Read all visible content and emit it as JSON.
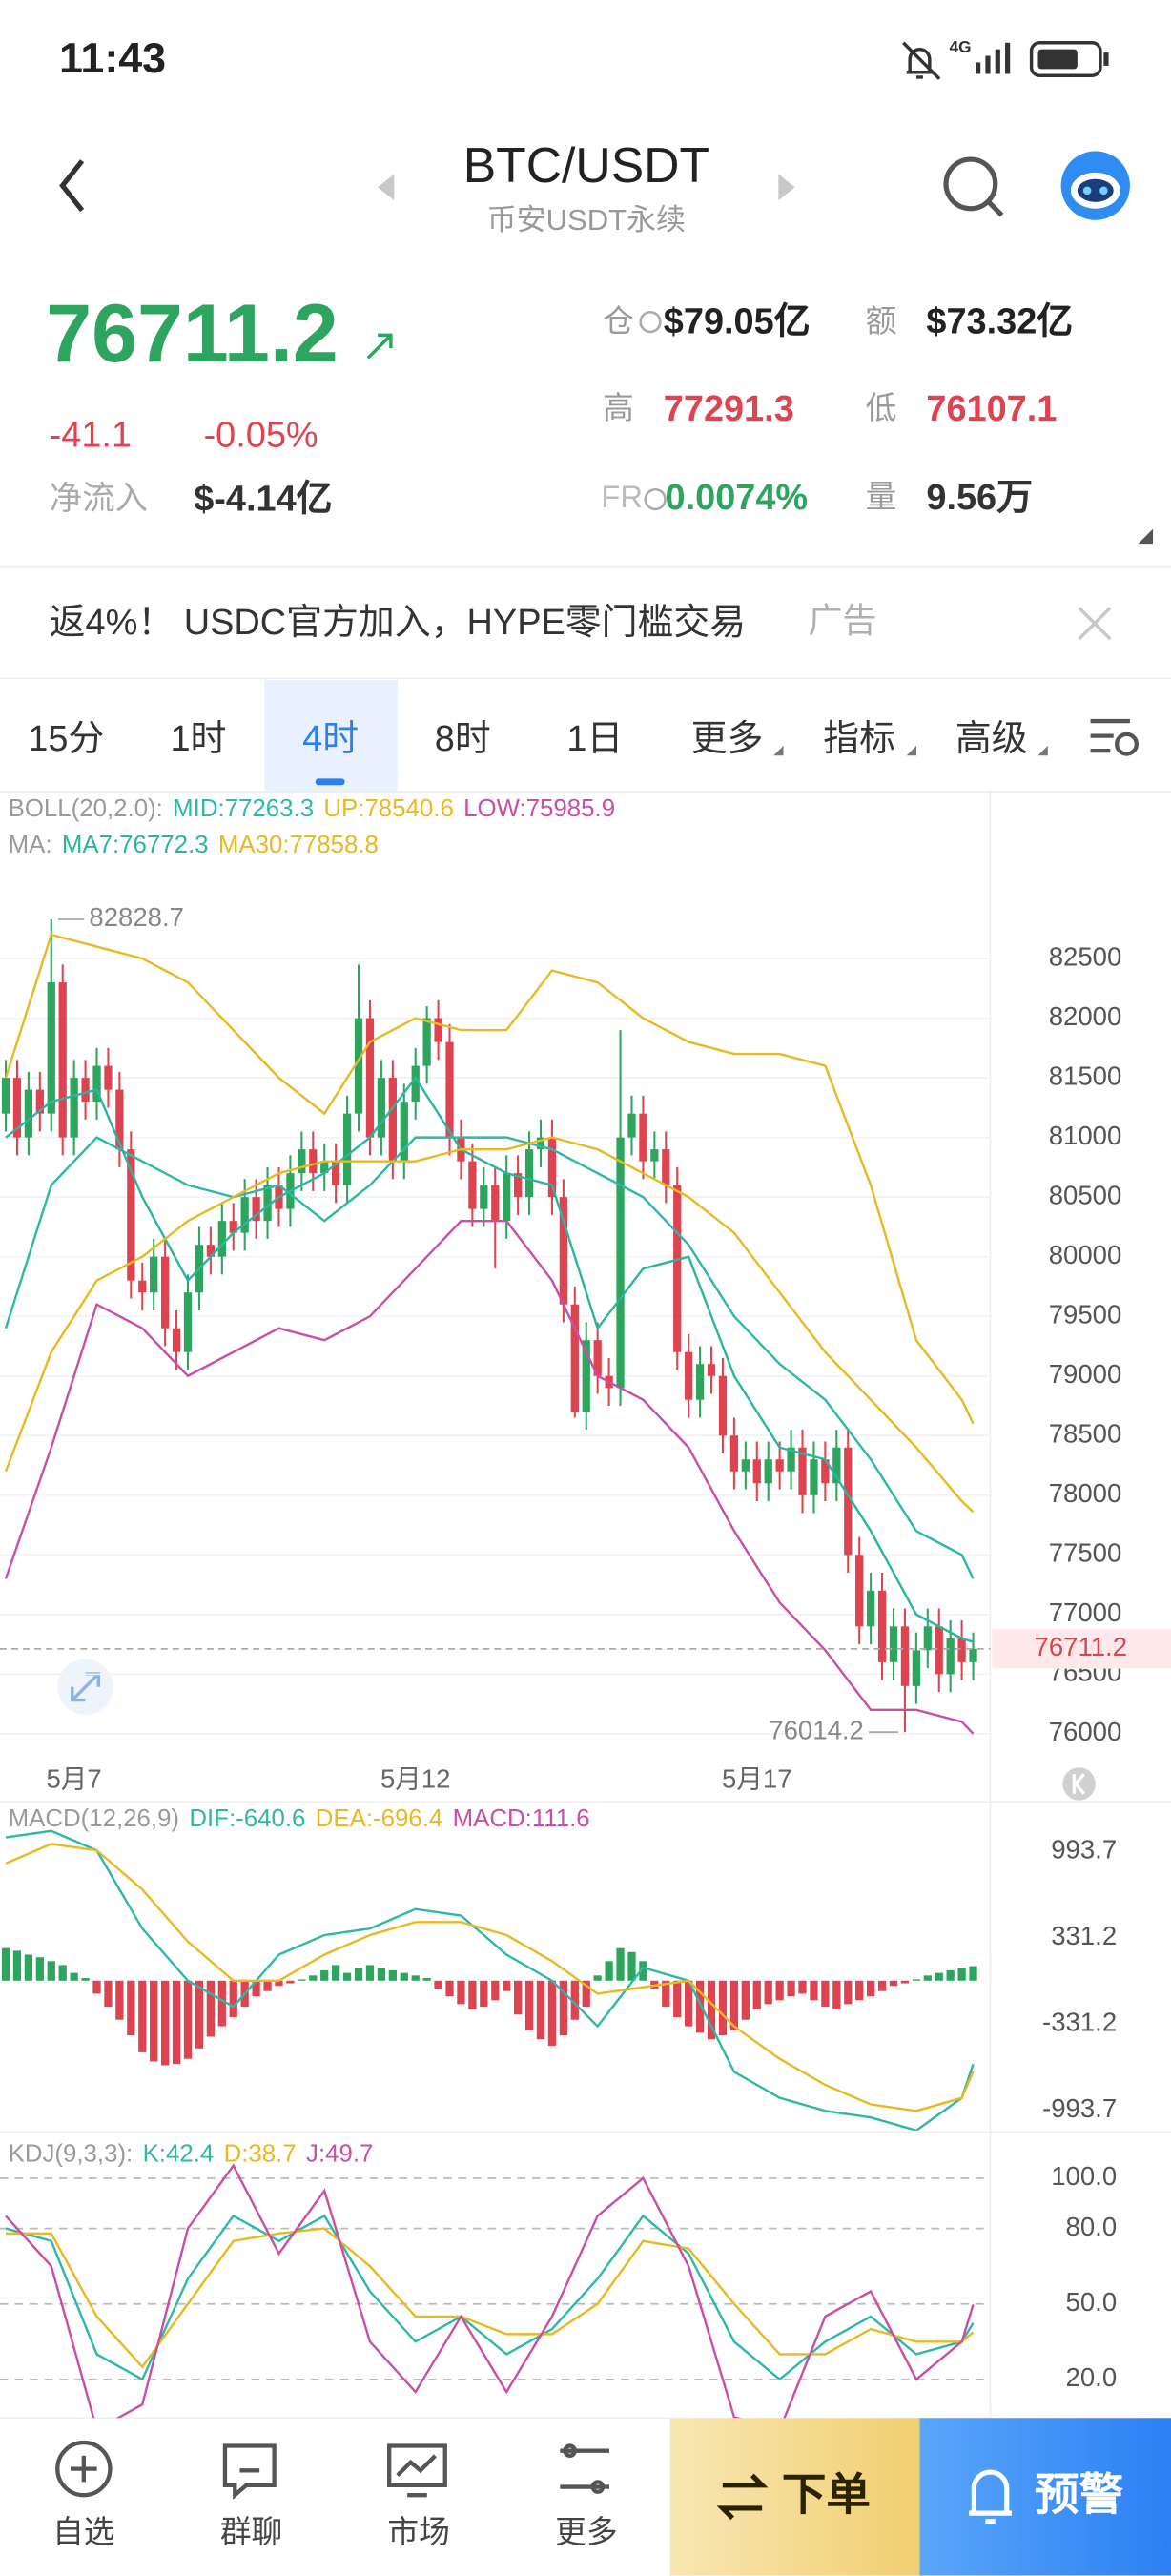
{
  "status_bar": {
    "time": "11:43",
    "network": "4G"
  },
  "header": {
    "title": "BTC/USDT",
    "subtitle": "币安USDT永续"
  },
  "ticker": {
    "price": "76711.2",
    "change": "-41.1",
    "change_pct": "-0.05%",
    "net_inflow_label": "净流入",
    "net_inflow": "$-4.14亿",
    "stats": [
      {
        "label": "仓",
        "value": "$79.05亿"
      },
      {
        "label": "额",
        "value": "$73.32亿"
      },
      {
        "label": "高",
        "value": "77291.3"
      },
      {
        "label": "低",
        "value": "76107.1"
      },
      {
        "label": "FR",
        "value": "0.0074%"
      },
      {
        "label": "量",
        "value": "9.56万"
      }
    ]
  },
  "ad": {
    "text": "返4%！ USDC官方加入，HYPE零门槛交易",
    "tag": "广告"
  },
  "tabs": {
    "items": [
      "15分",
      "1时",
      "4时",
      "8时",
      "1日",
      "更多",
      "指标",
      "高级"
    ],
    "selected": 2
  },
  "chart_data": [
    {
      "type": "candlestick",
      "ylim": [
        75800,
        83100
      ],
      "yticks": [
        76000,
        76500,
        77000,
        77500,
        78000,
        78500,
        79000,
        79500,
        80000,
        80500,
        81000,
        81500,
        82000,
        82500
      ],
      "grid": true,
      "candle_colors": {
        "up": "#2ea55e",
        "down": "#de4350"
      },
      "candles": [
        [
          81200,
          81650,
          81050,
          81500
        ],
        [
          81500,
          81650,
          80850,
          81000
        ],
        [
          81000,
          81550,
          80850,
          81400
        ],
        [
          81400,
          81550,
          81050,
          81200
        ],
        [
          81200,
          82828.7,
          81050,
          82300
        ],
        [
          82300,
          82450,
          80850,
          81000
        ],
        [
          81000,
          81650,
          80850,
          81500
        ],
        [
          81500,
          81650,
          81150,
          81300
        ],
        [
          81300,
          81750,
          81150,
          81600
        ],
        [
          81600,
          81750,
          81250,
          81400
        ],
        [
          81400,
          81550,
          80750,
          80900
        ],
        [
          80900,
          81050,
          79650,
          79800
        ],
        [
          79800,
          79950,
          79550,
          79700
        ],
        [
          79700,
          80150,
          79550,
          80000
        ],
        [
          80000,
          80150,
          79250,
          79400
        ],
        [
          79400,
          79550,
          79050,
          79200
        ],
        [
          79200,
          79850,
          79050,
          79700
        ],
        [
          79700,
          80250,
          79550,
          80100
        ],
        [
          80100,
          80250,
          79850,
          80000
        ],
        [
          80000,
          80450,
          79850,
          80300
        ],
        [
          80300,
          80450,
          80050,
          80200
        ],
        [
          80200,
          80650,
          80050,
          80500
        ],
        [
          80500,
          80650,
          80150,
          80300
        ],
        [
          80300,
          80750,
          80150,
          80600
        ],
        [
          80600,
          80750,
          80250,
          80400
        ],
        [
          80400,
          80850,
          80250,
          80700
        ],
        [
          80700,
          81050,
          80550,
          80900
        ],
        [
          80900,
          81050,
          80550,
          80700
        ],
        [
          80700,
          80950,
          80550,
          80800
        ],
        [
          80800,
          80950,
          80450,
          80600
        ],
        [
          80600,
          81350,
          80450,
          81200
        ],
        [
          81200,
          82450,
          81050,
          82000
        ],
        [
          82000,
          82150,
          80850,
          81000
        ],
        [
          81000,
          81650,
          80850,
          81500
        ],
        [
          81500,
          81650,
          80650,
          80800
        ],
        [
          80800,
          81450,
          80650,
          81300
        ],
        [
          81300,
          81750,
          81150,
          81600
        ],
        [
          81600,
          82100,
          81450,
          82000
        ],
        [
          82000,
          82150,
          81650,
          81800
        ],
        [
          81800,
          81950,
          80850,
          81000
        ],
        [
          81000,
          81150,
          80650,
          80800
        ],
        [
          80800,
          80950,
          80250,
          80400
        ],
        [
          80400,
          80750,
          80250,
          80600
        ],
        [
          80600,
          80750,
          79900,
          80300
        ],
        [
          80300,
          80850,
          80150,
          80700
        ],
        [
          80700,
          80850,
          80350,
          80500
        ],
        [
          80500,
          81050,
          80350,
          80900
        ],
        [
          80900,
          81150,
          80750,
          81000
        ],
        [
          81000,
          81150,
          80350,
          80500
        ],
        [
          80500,
          80650,
          79450,
          79600
        ],
        [
          79600,
          79750,
          78650,
          78700
        ],
        [
          78700,
          79450,
          78550,
          79300
        ],
        [
          79300,
          79450,
          78850,
          79000
        ],
        [
          79000,
          79150,
          78750,
          78900
        ],
        [
          78900,
          81900,
          78750,
          81000
        ],
        [
          81000,
          81350,
          80850,
          81200
        ],
        [
          81200,
          81350,
          80650,
          80800
        ],
        [
          80800,
          81050,
          80650,
          80900
        ],
        [
          80900,
          81050,
          80450,
          80600
        ],
        [
          80600,
          80750,
          79050,
          79200
        ],
        [
          79200,
          79350,
          78650,
          78800
        ],
        [
          78800,
          79250,
          78650,
          79100
        ],
        [
          79100,
          79250,
          78850,
          79000
        ],
        [
          79000,
          79150,
          78350,
          78500
        ],
        [
          78500,
          78650,
          78050,
          78200
        ],
        [
          78200,
          78450,
          78050,
          78300
        ],
        [
          78300,
          78450,
          77950,
          78100
        ],
        [
          78100,
          78450,
          77950,
          78300
        ],
        [
          78300,
          78450,
          78050,
          78200
        ],
        [
          78200,
          78550,
          78050,
          78400
        ],
        [
          78400,
          78550,
          77850,
          78000
        ],
        [
          78000,
          78450,
          77850,
          78300
        ],
        [
          78300,
          78450,
          77950,
          78100
        ],
        [
          78100,
          78550,
          77950,
          78400
        ],
        [
          78400,
          78550,
          77350,
          77500
        ],
        [
          77500,
          77650,
          76750,
          76900
        ],
        [
          76900,
          77350,
          76750,
          77200
        ],
        [
          77200,
          77350,
          76450,
          76600
        ],
        [
          76600,
          77050,
          76450,
          76900
        ],
        [
          76900,
          77050,
          76014.2,
          76400
        ],
        [
          76400,
          76850,
          76250,
          76700
        ],
        [
          76700,
          77050,
          76550,
          76900
        ],
        [
          76900,
          77050,
          76350,
          76500
        ],
        [
          76500,
          76950,
          76350,
          76800
        ],
        [
          76800,
          76950,
          76450,
          76600
        ],
        [
          76600,
          76850,
          76450,
          76711.2
        ]
      ],
      "x": [
        0,
        4,
        8,
        12,
        16,
        20,
        24,
        28,
        32,
        36,
        40,
        44,
        48,
        52,
        56,
        60,
        64,
        68,
        72,
        76,
        80,
        84,
        85
      ],
      "boll": {
        "label": "BOLL(20,2.0):",
        "series": [
          {
            "name": "MID:77263.3",
            "color": "#2fb8a8",
            "values": [
              79400,
              80600,
              81000,
              80800,
              80600,
              80500,
              80600,
              80300,
              80600,
              81000,
              81000,
              81000,
              80900,
              80700,
              80500,
              80100,
              79500,
              79100,
              78800,
              78300,
              77700,
              77500,
              77300
            ]
          },
          {
            "name": "UP:78540.6",
            "color": "#e8b923",
            "values": [
              81500,
              82700,
              82600,
              82500,
              82300,
              81900,
              81500,
              81200,
              81800,
              82000,
              81900,
              81900,
              82400,
              82300,
              82000,
              81800,
              81700,
              81700,
              81600,
              80600,
              79300,
              78800,
              78600
            ]
          },
          {
            "name": "LOW:75985.9",
            "color": "#c94fa5",
            "values": [
              77300,
              78400,
              79600,
              79400,
              79000,
              79200,
              79400,
              79300,
              79500,
              79900,
              80300,
              80300,
              79800,
              79000,
              78800,
              78400,
              77700,
              77100,
              76700,
              76200,
              76200,
              76100,
              76000
            ]
          }
        ]
      },
      "ma": {
        "label": "MA:",
        "series": [
          {
            "name": "MA7:76772.3",
            "color": "#2bb5a0",
            "values": [
              81000,
              81300,
              81400,
              80500,
              79800,
              80200,
              80500,
              80700,
              81000,
              81500,
              80900,
              80700,
              80600,
              79400,
              79900,
              80000,
              79000,
              78400,
              78300,
              77700,
              77000,
              76800,
              76770
            ]
          },
          {
            "name": "MA30:77858.8",
            "color": "#e8b923",
            "values": [
              78200,
              79200,
              79800,
              80000,
              80300,
              80500,
              80700,
              80800,
              80800,
              80800,
              80900,
              80900,
              81000,
              80900,
              80700,
              80500,
              80200,
              79700,
              79200,
              78800,
              78400,
              77950,
              77860
            ]
          }
        ]
      },
      "date_labels": [
        {
          "index": 6,
          "label": "5月7"
        },
        {
          "index": 36,
          "label": "5月12"
        },
        {
          "index": 66,
          "label": "5月17"
        }
      ],
      "high_label": {
        "index": 4,
        "value": 82828.7
      },
      "low_label": {
        "index": 79,
        "value": 76014.2
      },
      "last_price": 76711.2
    },
    {
      "type": "macd",
      "label": "MACD(12,26,9)",
      "ylim": [
        -1150,
        1360
      ],
      "yticks": [
        -993.7,
        -331.2,
        331.2,
        993.7
      ],
      "x": [
        0,
        4,
        8,
        12,
        16,
        20,
        24,
        28,
        32,
        36,
        40,
        44,
        48,
        52,
        56,
        60,
        64,
        68,
        72,
        76,
        80,
        84,
        85
      ],
      "series": [
        {
          "name": "DIF:-640.6",
          "color": "#2fb8a8",
          "values": [
            1100,
            1150,
            1000,
            400,
            0,
            -200,
            200,
            350,
            400,
            550,
            500,
            200,
            0,
            -350,
            100,
            0,
            -700,
            -900,
            -1000,
            -1050,
            -1150,
            -900,
            -640.6
          ]
        },
        {
          "name": "DEA:-696.4",
          "color": "#e8b923",
          "values": [
            900,
            1050,
            1000,
            700,
            300,
            0,
            0,
            200,
            350,
            450,
            450,
            350,
            150,
            -100,
            -50,
            0,
            -350,
            -600,
            -800,
            -950,
            -1000,
            -900,
            -696.4
          ]
        }
      ],
      "histogram": {
        "name": "MACD:111.6",
        "name_color": "#c94fa5",
        "color_up": "#2ea55e",
        "color_down": "#de4350",
        "values": [
          250,
          230,
          200,
          180,
          150,
          120,
          60,
          20,
          -100,
          -200,
          -300,
          -420,
          -550,
          -620,
          -650,
          -640,
          -600,
          -520,
          -430,
          -350,
          -280,
          -200,
          -120,
          -80,
          -40,
          -20,
          10,
          40,
          80,
          120,
          60,
          100,
          120,
          100,
          80,
          60,
          40,
          20,
          -60,
          -120,
          -180,
          -220,
          -200,
          -150,
          -80,
          -260,
          -380,
          -450,
          -500,
          -420,
          -300,
          -200,
          40,
          150,
          250,
          220,
          150,
          -60,
          -200,
          -280,
          -350,
          -400,
          -450,
          -420,
          -380,
          -300,
          -220,
          -180,
          -150,
          -120,
          -100,
          -150,
          -200,
          -220,
          -180,
          -150,
          -120,
          -80,
          -40,
          -20,
          10,
          40,
          60,
          80,
          100,
          111.6
        ]
      }
    },
    {
      "type": "kdj",
      "label": "KDJ(9,3,3):",
      "ylim": [
        6,
        117
      ],
      "yticks": [
        {
          "value": 20,
          "label": "20.0"
        },
        {
          "value": 50,
          "label": "50.0"
        },
        {
          "value": 80,
          "label": "80.0"
        },
        {
          "value": 100,
          "label": "100.0"
        }
      ],
      "x": [
        0,
        4,
        8,
        12,
        16,
        20,
        24,
        28,
        32,
        36,
        40,
        44,
        48,
        52,
        56,
        60,
        64,
        68,
        72,
        76,
        80,
        84,
        85
      ],
      "series": [
        {
          "name": "K:42.4",
          "color": "#2fb8a8",
          "values": [
            80,
            75,
            30,
            20,
            60,
            85,
            75,
            85,
            55,
            35,
            45,
            30,
            40,
            60,
            85,
            70,
            35,
            20,
            35,
            45,
            30,
            35,
            42.4
          ]
        },
        {
          "name": "D:38.7",
          "color": "#e8b923",
          "values": [
            78,
            78,
            45,
            25,
            50,
            75,
            78,
            80,
            65,
            45,
            45,
            38,
            38,
            50,
            75,
            72,
            50,
            30,
            30,
            40,
            35,
            35,
            38.7
          ]
        },
        {
          "name": "J:49.7",
          "color": "#c94fa5",
          "values": [
            85,
            65,
            0,
            10,
            80,
            105,
            70,
            95,
            35,
            15,
            45,
            15,
            45,
            85,
            100,
            65,
            5,
            0,
            45,
            55,
            20,
            35,
            49.7
          ]
        }
      ]
    }
  ],
  "nav": {
    "items": [
      "自选",
      "群聊",
      "市场",
      "更多"
    ],
    "order": "下单",
    "alert": "预警"
  }
}
